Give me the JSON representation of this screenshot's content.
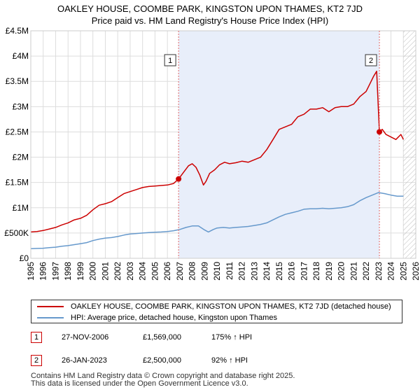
{
  "title": "OAKLEY HOUSE, COOMBE PARK, KINGSTON UPON THAMES, KT2 7JD",
  "subtitle": "Price paid vs. HM Land Registry's House Price Index (HPI)",
  "colors": {
    "property_line": "#cc0000",
    "hpi_line": "#6699cc",
    "shade": "#e8eefa",
    "grid": "#dddddd",
    "vline": "#e06666",
    "future_hatch": "#bbbbbb"
  },
  "chart_data": {
    "type": "line",
    "xlabel": "",
    "ylabel": "",
    "xlim": [
      1995.0,
      2026.0
    ],
    "ylim": [
      0,
      4500000
    ],
    "x_ticks": [
      "1995",
      "1996",
      "1997",
      "1998",
      "1999",
      "2000",
      "2001",
      "2002",
      "2003",
      "2004",
      "2005",
      "2006",
      "2007",
      "2008",
      "2009",
      "2010",
      "2011",
      "2012",
      "2013",
      "2014",
      "2015",
      "2016",
      "2017",
      "2018",
      "2019",
      "2020",
      "2021",
      "2022",
      "2023",
      "2024",
      "2025",
      "2026"
    ],
    "y_ticks": [
      {
        "value": 0,
        "label": "£0"
      },
      {
        "value": 500000,
        "label": "£500K"
      },
      {
        "value": 1000000,
        "label": "£1M"
      },
      {
        "value": 1500000,
        "label": "£1.5M"
      },
      {
        "value": 2000000,
        "label": "£2M"
      },
      {
        "value": 2500000,
        "label": "£2.5M"
      },
      {
        "value": 3000000,
        "label": "£3M"
      },
      {
        "value": 3500000,
        "label": "£3.5M"
      },
      {
        "value": 4000000,
        "label": "£4M"
      },
      {
        "value": 4500000,
        "label": "£4.5M"
      }
    ],
    "shaded_period": [
      2006.9,
      2023.07
    ],
    "future_from": 2025.0,
    "series": [
      {
        "name": "OAKLEY HOUSE, COOMBE PARK, KINGSTON UPON THAMES, KT2 7JD (detached house)",
        "color": "#cc0000",
        "x": [
          1995.0,
          1995.5,
          1996.0,
          1996.5,
          1997.0,
          1997.5,
          1998.0,
          1998.5,
          1999.0,
          1999.5,
          2000.0,
          2000.5,
          2001.0,
          2001.5,
          2002.0,
          2002.5,
          2003.0,
          2003.5,
          2004.0,
          2004.5,
          2005.0,
          2005.5,
          2006.0,
          2006.5,
          2006.9,
          2007.3,
          2007.7,
          2008.0,
          2008.3,
          2008.6,
          2008.9,
          2009.1,
          2009.4,
          2009.8,
          2010.2,
          2010.6,
          2011.0,
          2011.5,
          2012.0,
          2012.5,
          2013.0,
          2013.5,
          2014.0,
          2014.5,
          2015.0,
          2015.5,
          2016.0,
          2016.5,
          2017.0,
          2017.5,
          2018.0,
          2018.5,
          2019.0,
          2019.5,
          2020.0,
          2020.5,
          2021.0,
          2021.5,
          2022.0,
          2022.3,
          2022.6,
          2022.85,
          2023.07,
          2023.3,
          2023.6,
          2024.0,
          2024.4,
          2024.8,
          2025.0
        ],
        "y": [
          520000,
          530000,
          550000,
          580000,
          610000,
          660000,
          700000,
          760000,
          790000,
          850000,
          960000,
          1050000,
          1080000,
          1120000,
          1200000,
          1280000,
          1320000,
          1360000,
          1400000,
          1420000,
          1430000,
          1440000,
          1450000,
          1480000,
          1569000,
          1700000,
          1830000,
          1870000,
          1800000,
          1650000,
          1450000,
          1520000,
          1680000,
          1750000,
          1850000,
          1900000,
          1870000,
          1890000,
          1920000,
          1900000,
          1950000,
          2000000,
          2150000,
          2350000,
          2550000,
          2600000,
          2650000,
          2800000,
          2850000,
          2950000,
          2950000,
          2980000,
          2900000,
          2980000,
          3000000,
          3000000,
          3050000,
          3200000,
          3300000,
          3450000,
          3600000,
          3700000,
          2500000,
          2550000,
          2450000,
          2400000,
          2350000,
          2450000,
          2350000
        ]
      },
      {
        "name": "HPI: Average price, detached house, Kingston upon Thames",
        "color": "#6699cc",
        "x": [
          1995.0,
          1995.5,
          1996.0,
          1996.5,
          1997.0,
          1997.5,
          1998.0,
          1998.5,
          1999.0,
          1999.5,
          2000.0,
          2000.5,
          2001.0,
          2001.5,
          2002.0,
          2002.5,
          2003.0,
          2003.5,
          2004.0,
          2004.5,
          2005.0,
          2005.5,
          2006.0,
          2006.5,
          2007.0,
          2007.5,
          2008.0,
          2008.5,
          2009.0,
          2009.3,
          2009.7,
          2010.0,
          2010.5,
          2011.0,
          2011.5,
          2012.0,
          2012.5,
          2013.0,
          2013.5,
          2014.0,
          2014.5,
          2015.0,
          2015.5,
          2016.0,
          2016.5,
          2017.0,
          2017.5,
          2018.0,
          2018.5,
          2019.0,
          2019.5,
          2020.0,
          2020.5,
          2021.0,
          2021.5,
          2022.0,
          2022.5,
          2023.0,
          2023.5,
          2024.0,
          2024.5,
          2025.0
        ],
        "y": [
          190000,
          195000,
          200000,
          210000,
          220000,
          240000,
          250000,
          270000,
          290000,
          310000,
          350000,
          380000,
          400000,
          410000,
          430000,
          460000,
          480000,
          490000,
          500000,
          510000,
          515000,
          520000,
          530000,
          545000,
          570000,
          610000,
          640000,
          640000,
          560000,
          520000,
          570000,
          600000,
          610000,
          600000,
          610000,
          620000,
          630000,
          650000,
          670000,
          700000,
          760000,
          820000,
          870000,
          900000,
          930000,
          970000,
          980000,
          980000,
          990000,
          980000,
          990000,
          1000000,
          1020000,
          1060000,
          1140000,
          1200000,
          1250000,
          1300000,
          1280000,
          1250000,
          1230000,
          1230000
        ]
      }
    ],
    "sales": [
      {
        "marker": "1",
        "x": 2006.9,
        "price": 1569000
      },
      {
        "marker": "2",
        "x": 2023.07,
        "price": 2500000
      }
    ]
  },
  "legend": {
    "property_label": "OAKLEY HOUSE, COOMBE PARK, KINGSTON UPON THAMES, KT2 7JD (detached house)",
    "hpi_label": "HPI: Average price, detached house, Kingston upon Thames"
  },
  "sales_table": [
    {
      "marker": "1",
      "date": "27-NOV-2006",
      "price": "£1,569,000",
      "hpi": "175% ↑ HPI"
    },
    {
      "marker": "2",
      "date": "26-JAN-2023",
      "price": "£2,500,000",
      "hpi": "92% ↑ HPI"
    }
  ],
  "footer": {
    "line1": "Contains HM Land Registry data © Crown copyright and database right 2025.",
    "line2": "This data is licensed under the Open Government Licence v3.0."
  }
}
